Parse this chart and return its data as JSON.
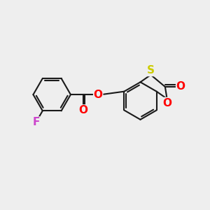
{
  "background_color": "#eeeeee",
  "bond_color": "#1a1a1a",
  "atom_colors": {
    "O": "#ff0000",
    "S": "#cccc00",
    "F": "#cc44cc"
  },
  "bond_width": 1.5,
  "font_size_atoms": 11
}
